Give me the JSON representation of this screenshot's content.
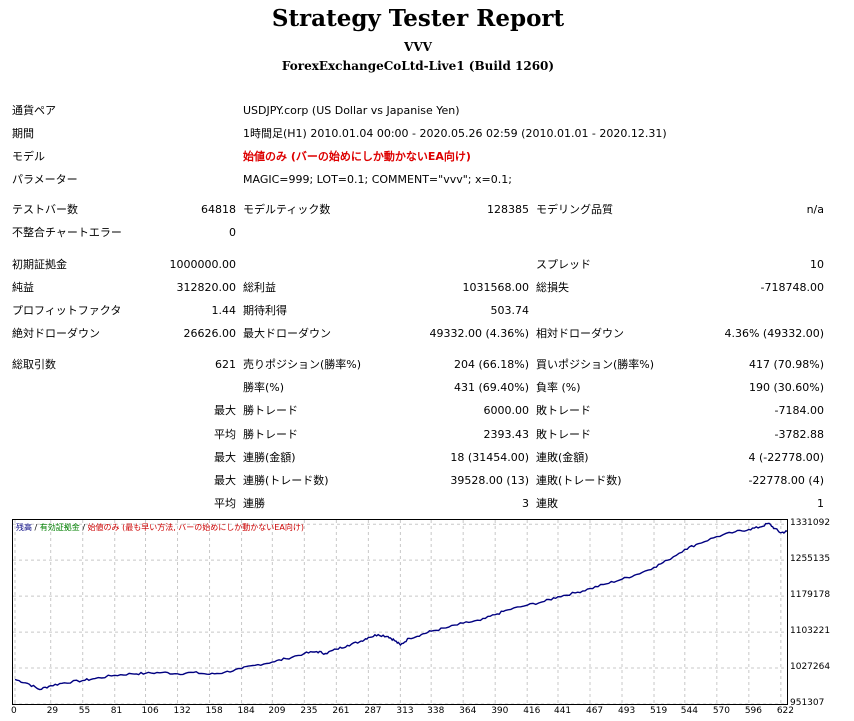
{
  "header": {
    "title": "Strategy Tester Report",
    "ea_name": "VVV",
    "server": "ForexExchangeCoLtd-Live1 (Build 1260)"
  },
  "info": {
    "symbol_label": "通貨ペア",
    "symbol_value": "USDJPY.corp (US Dollar vs Japanise Yen)",
    "period_label": "期間",
    "period_value": "1時間足(H1) 2010.01.04 00:00 - 2020.05.26 02:59 (2010.01.01 - 2020.12.31)",
    "model_label": "モデル",
    "model_value": "始値のみ (バーの始めにしか動かないEA向け)",
    "params_label": "パラメーター",
    "params_value": "MAGIC=999; LOT=0.1; COMMENT=\"vvv\"; x=0.1;"
  },
  "stats": {
    "bars_label": "テストバー数",
    "bars_value": "64818",
    "ticks_label": "モデルティック数",
    "ticks_value": "128385",
    "quality_label": "モデリング品質",
    "quality_value": "n/a",
    "mismatch_label": "不整合チャートエラー",
    "mismatch_value": "0",
    "deposit_label": "初期証拠金",
    "deposit_value": "1000000.00",
    "spread_label": "スプレッド",
    "spread_value": "10",
    "net_label": "純益",
    "net_value": "312820.00",
    "gross_profit_label": "総利益",
    "gross_profit_value": "1031568.00",
    "gross_loss_label": "総損失",
    "gross_loss_value": "-718748.00",
    "pf_label": "プロフィットファクタ",
    "pf_value": "1.44",
    "expected_label": "期待利得",
    "expected_value": "503.74",
    "abs_dd_label": "絶対ドローダウン",
    "abs_dd_value": "26626.00",
    "max_dd_label": "最大ドローダウン",
    "max_dd_value": "49332.00 (4.36%)",
    "rel_dd_label": "相対ドローダウン",
    "rel_dd_value": "4.36% (49332.00)",
    "trades_label": "総取引数",
    "trades_value": "621",
    "short_label": "売りポジション(勝率%)",
    "short_value": "204 (66.18%)",
    "long_label": "買いポジション(勝率%)",
    "long_value": "417 (70.98%)",
    "win_rate_label": "勝率(%)",
    "win_rate_value": "431 (69.40%)",
    "loss_rate_label": "負率 (%)",
    "loss_rate_value": "190 (30.60%)",
    "max_prefix": "最大",
    "avg_prefix": "平均",
    "largest_win_label": "勝トレード",
    "largest_win_value": "6000.00",
    "largest_loss_label": "敗トレード",
    "largest_loss_value": "-7184.00",
    "avg_win_label": "勝トレード",
    "avg_win_value": "2393.43",
    "avg_loss_label": "敗トレード",
    "avg_loss_value": "-3782.88",
    "cons_wins_amt_label": "連勝(金額)",
    "cons_wins_amt_value": "18 (31454.00)",
    "cons_losses_amt_label": "連敗(金額)",
    "cons_losses_amt_value": "4 (-22778.00)",
    "cons_profit_label": "連勝(トレード数)",
    "cons_profit_value": "39528.00 (13)",
    "cons_loss_label": "連敗(トレード数)",
    "cons_loss_value": "-22778.00 (4)",
    "avg_cons_wins_label": "連勝",
    "avg_cons_wins_value": "3",
    "avg_cons_losses_label": "連敗",
    "avg_cons_losses_value": "1"
  },
  "chart_legend": {
    "balance": "残高",
    "sep1": " / ",
    "margin": "有効証拠金",
    "sep2": " / ",
    "model": "始値のみ (最も早い方法, バーの始めにしか動かないEA向け)",
    "balance_color": "#000080",
    "margin_color": "#008000",
    "model_color": "#cc0000"
  },
  "chart_data": {
    "type": "line",
    "title": "",
    "xlabel": "",
    "ylabel": "",
    "x_ticks": [
      0,
      29,
      55,
      81,
      106,
      132,
      158,
      184,
      209,
      235,
      261,
      287,
      313,
      338,
      364,
      390,
      416,
      441,
      467,
      493,
      519,
      544,
      570,
      596,
      622
    ],
    "y_ticks": [
      951307,
      1027264,
      1103221,
      1179178,
      1255135,
      1331092
    ],
    "xlim": [
      0,
      627
    ],
    "ylim": [
      951307,
      1340000
    ],
    "grid": true,
    "series": [
      {
        "color": "#000080",
        "points": [
          [
            0,
            1003000
          ],
          [
            10,
            995000
          ],
          [
            20,
            982000
          ],
          [
            29,
            990000
          ],
          [
            40,
            996000
          ],
          [
            55,
            1001000
          ],
          [
            65,
            1005000
          ],
          [
            81,
            1012000
          ],
          [
            95,
            1015000
          ],
          [
            106,
            1016000
          ],
          [
            120,
            1018000
          ],
          [
            132,
            1015000
          ],
          [
            145,
            1018000
          ],
          [
            158,
            1014000
          ],
          [
            170,
            1018000
          ],
          [
            184,
            1026000
          ],
          [
            195,
            1033000
          ],
          [
            209,
            1040000
          ],
          [
            220,
            1047000
          ],
          [
            235,
            1058000
          ],
          [
            245,
            1062000
          ],
          [
            252,
            1058000
          ],
          [
            261,
            1067000
          ],
          [
            270,
            1075000
          ],
          [
            280,
            1083000
          ],
          [
            287,
            1092000
          ],
          [
            295,
            1098000
          ],
          [
            303,
            1094000
          ],
          [
            308,
            1086000
          ],
          [
            313,
            1076000
          ],
          [
            320,
            1090000
          ],
          [
            330,
            1098000
          ],
          [
            338,
            1105000
          ],
          [
            350,
            1112000
          ],
          [
            364,
            1122000
          ],
          [
            378,
            1128000
          ],
          [
            390,
            1140000
          ],
          [
            400,
            1150000
          ],
          [
            416,
            1160000
          ],
          [
            430,
            1168000
          ],
          [
            441,
            1178000
          ],
          [
            455,
            1186000
          ],
          [
            467,
            1195000
          ],
          [
            480,
            1205000
          ],
          [
            493,
            1215000
          ],
          [
            505,
            1225000
          ],
          [
            519,
            1240000
          ],
          [
            530,
            1255000
          ],
          [
            544,
            1278000
          ],
          [
            555,
            1290000
          ],
          [
            570,
            1305000
          ],
          [
            585,
            1315000
          ],
          [
            596,
            1320000
          ],
          [
            605,
            1325000
          ],
          [
            612,
            1333000
          ],
          [
            617,
            1322000
          ],
          [
            622,
            1313000
          ],
          [
            627,
            1316000
          ]
        ]
      }
    ]
  }
}
